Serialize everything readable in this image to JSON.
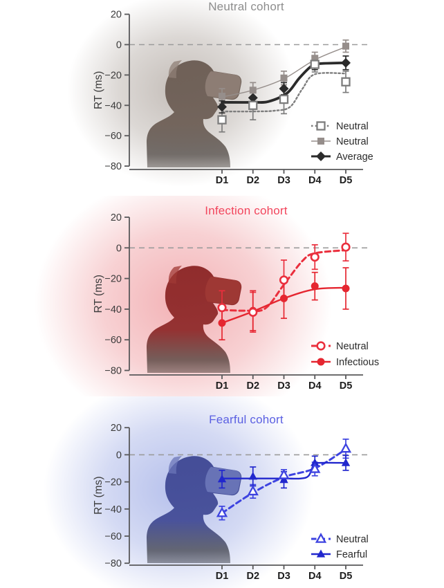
{
  "axis": {
    "color": "#58585a",
    "ytick_label_color": "#3c3c3c",
    "xtick_label_color": "#1d1d1d",
    "ylabel_color": "#3c3c3c",
    "zero_line_color": "#9b9b9b",
    "legend_text_color": "#2b2b2b"
  },
  "chart_data": [
    {
      "type": "line",
      "title": "Neutral cohort",
      "ylabel": "RT (ms)",
      "categories": [
        "D1",
        "D2",
        "D3",
        "D4",
        "D5"
      ],
      "ylim": [
        -80,
        20
      ],
      "yticks": [
        20,
        0,
        -20,
        -40,
        -60,
        -80
      ],
      "ytick_labels": [
        "20",
        "0",
        "−20",
        "−40",
        "−60",
        "−80"
      ],
      "zero_line": true,
      "grid": false,
      "legend_position": "bottom-right",
      "series": [
        {
          "name": "Neutral",
          "marker": "open-square",
          "line_style": "dotted",
          "color": "#7d7d7d",
          "values": [
            -49.5,
            -40,
            -36,
            -13,
            -24.5
          ],
          "errors": [
            8,
            9.5,
            9.5,
            5,
            7
          ],
          "fit": [
            [
              0,
              -44
            ],
            [
              1,
              -44
            ],
            [
              1.7,
              -43.5
            ],
            [
              2.2,
              -41
            ],
            [
              2.6,
              -29
            ],
            [
              3,
              -19.5
            ],
            [
              4,
              -19
            ]
          ]
        },
        {
          "name": "Neutral",
          "marker": "filled-square",
          "line_style": "solid-thin",
          "color": "#968e8b",
          "values": [
            -34,
            -30,
            -22,
            -9,
            -1
          ],
          "errors": [
            5,
            5,
            4.5,
            4,
            4
          ],
          "fit": [
            [
              0,
              -34.5
            ],
            [
              1,
              -30
            ],
            [
              2,
              -22.5
            ],
            [
              3,
              -10
            ],
            [
              4,
              -1.5
            ]
          ]
        },
        {
          "name": "Average",
          "marker": "filled-diamond",
          "line_style": "solid-thick",
          "color": "#2b2b2b",
          "values": [
            -41,
            -35,
            -29,
            -12.5,
            -12
          ],
          "errors": [
            4,
            4.5,
            4,
            4,
            4.5
          ],
          "fit": [
            [
              0,
              -38
            ],
            [
              1,
              -38
            ],
            [
              1.5,
              -37.5
            ],
            [
              2.1,
              -32
            ],
            [
              2.5,
              -22
            ],
            [
              2.9,
              -14
            ],
            [
              3.2,
              -12.5
            ],
            [
              4,
              -12
            ]
          ]
        }
      ],
      "theme": {
        "title_color": "#8d8d8d",
        "glow_color": "#b9b1ab",
        "silhouette_top": "#6b5c53",
        "silhouette_bottom": "#564f4b",
        "headset_color": "#8f7f76"
      }
    },
    {
      "type": "line",
      "title": "Infection cohort",
      "ylabel": "RT (ms)",
      "categories": [
        "D1",
        "D2",
        "D3",
        "D4",
        "D5"
      ],
      "ylim": [
        -80,
        20
      ],
      "yticks": [
        20,
        0,
        -20,
        -40,
        -60,
        -80
      ],
      "ytick_labels": [
        "20",
        "0",
        "−20",
        "−40",
        "−60",
        "−80"
      ],
      "zero_line": true,
      "grid": false,
      "legend_position": "bottom-right",
      "series": [
        {
          "name": "Neutral",
          "marker": "open-circle",
          "line_style": "dashed",
          "color": "#ea2f3d",
          "values": [
            -39,
            -42,
            -21,
            -6,
            0.5
          ],
          "errors": [
            11,
            13,
            13,
            8,
            9
          ],
          "fit": [
            [
              0,
              -40.5
            ],
            [
              0.8,
              -41
            ],
            [
              1.4,
              -39.5
            ],
            [
              2,
              -24
            ],
            [
              2.6,
              -8.5
            ],
            [
              3,
              -3.5
            ],
            [
              4,
              -1.5
            ]
          ]
        },
        {
          "name": "Infectious",
          "marker": "filled-circle",
          "line_style": "solid",
          "color": "#e52630",
          "values": [
            -49,
            -41,
            -33,
            -25,
            -26.5
          ],
          "errors": [
            11,
            13,
            13,
            9,
            13.5
          ],
          "fit": [
            [
              0,
              -49
            ],
            [
              1,
              -41.5
            ],
            [
              2,
              -33
            ],
            [
              3,
              -27
            ],
            [
              4,
              -26
            ]
          ]
        }
      ],
      "theme": {
        "title_color": "#f2455c",
        "glow_color": "#f0a3a7",
        "silhouette_top": "#8c2626",
        "silhouette_bottom": "#55423d",
        "headset_color": "#a03a35"
      }
    },
    {
      "type": "line",
      "title": "Fearful cohort",
      "ylabel": "RT (ms)",
      "categories": [
        "D1",
        "D2",
        "D3",
        "D4",
        "D5"
      ],
      "ylim": [
        -80,
        20
      ],
      "yticks": [
        20,
        0,
        -20,
        -40,
        -60,
        -80
      ],
      "ytick_labels": [
        "20",
        "0",
        "−20",
        "−40",
        "−60",
        "−80"
      ],
      "zero_line": true,
      "grid": false,
      "legend_position": "bottom-right",
      "series": [
        {
          "name": "Neutral",
          "marker": "open-triangle",
          "line_style": "dashed",
          "color": "#3d43e0",
          "values": [
            -43,
            -27,
            -15,
            -10.5,
            4.5
          ],
          "errors": [
            5,
            5,
            4,
            5,
            7
          ],
          "fit": [
            [
              0,
              -43
            ],
            [
              1,
              -28
            ],
            [
              2,
              -16.5
            ],
            [
              3,
              -10
            ],
            [
              4,
              4
            ]
          ]
        },
        {
          "name": "Fearful",
          "marker": "filled-triangle",
          "line_style": "solid",
          "color": "#2127cd",
          "values": [
            -18,
            -16,
            -18.5,
            -6,
            -6
          ],
          "errors": [
            6.5,
            7,
            6,
            5,
            5.5
          ],
          "fit": [
            [
              0,
              -17.5
            ],
            [
              1,
              -17.5
            ],
            [
              2,
              -17.5
            ],
            [
              2.55,
              -17.5
            ],
            [
              2.8,
              -15.5
            ],
            [
              2.95,
              -8
            ],
            [
              3.1,
              -6
            ],
            [
              4,
              -6
            ]
          ]
        }
      ],
      "theme": {
        "title_color": "#5b60e2",
        "glow_color": "#a9b5e8",
        "silhouette_top": "#3f4894",
        "silhouette_bottom": "#474954",
        "headset_color": "#6b76b8"
      }
    }
  ]
}
